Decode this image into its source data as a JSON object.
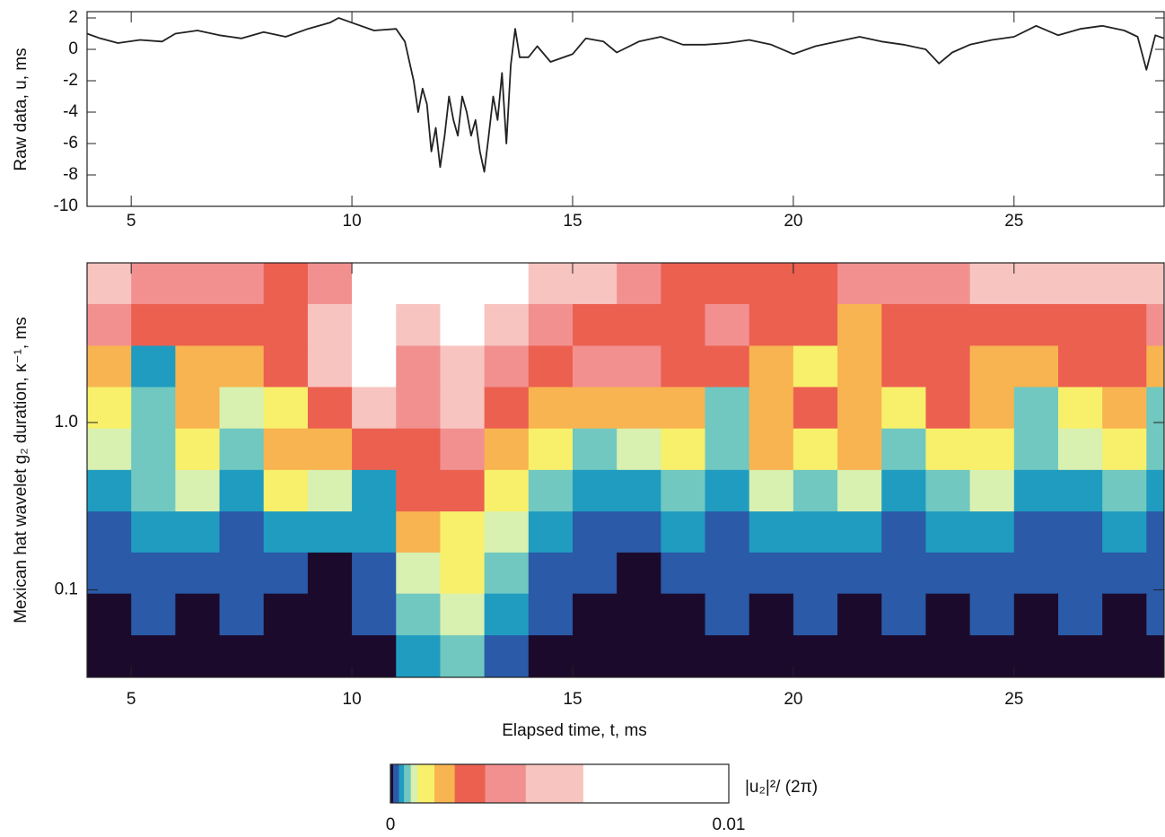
{
  "chart_data": [
    {
      "type": "line",
      "ylabel": "Raw data, u, ms",
      "x": [
        4.0,
        4.3,
        4.7,
        5.2,
        5.7,
        6.0,
        6.5,
        7.0,
        7.5,
        8.0,
        8.5,
        9.0,
        9.5,
        9.7,
        10.0,
        10.5,
        11.0,
        11.2,
        11.4,
        11.5,
        11.6,
        11.7,
        11.8,
        11.9,
        12.0,
        12.1,
        12.2,
        12.3,
        12.4,
        12.5,
        12.6,
        12.7,
        12.8,
        12.9,
        13.0,
        13.1,
        13.2,
        13.3,
        13.4,
        13.5,
        13.6,
        13.7,
        13.8,
        14.0,
        14.2,
        14.5,
        15.0,
        15.3,
        15.7,
        16.0,
        16.5,
        17.0,
        17.5,
        18.0,
        18.5,
        19.0,
        19.5,
        20.0,
        20.5,
        21.0,
        21.5,
        22.0,
        22.5,
        23.0,
        23.3,
        23.6,
        24.0,
        24.5,
        25.0,
        25.5,
        26.0,
        26.5,
        27.0,
        27.5,
        27.8,
        28.0,
        28.2,
        28.4
      ],
      "values": [
        1.0,
        0.7,
        0.4,
        0.6,
        0.5,
        1.0,
        1.2,
        0.9,
        0.7,
        1.1,
        0.8,
        1.3,
        1.7,
        2.0,
        1.7,
        1.2,
        1.3,
        0.5,
        -2.0,
        -4.0,
        -2.5,
        -3.5,
        -6.5,
        -5.0,
        -7.5,
        -5.5,
        -3.0,
        -4.5,
        -5.5,
        -3.0,
        -4.0,
        -5.5,
        -4.5,
        -6.5,
        -7.8,
        -5.5,
        -3.0,
        -4.5,
        -1.5,
        -6.0,
        -1.0,
        1.3,
        -0.5,
        -0.5,
        0.2,
        -0.8,
        -0.3,
        0.7,
        0.5,
        -0.2,
        0.5,
        0.8,
        0.3,
        0.3,
        0.4,
        0.6,
        0.3,
        -0.3,
        0.2,
        0.5,
        0.8,
        0.5,
        0.3,
        0.0,
        -0.9,
        -0.2,
        0.3,
        0.6,
        0.8,
        1.5,
        0.9,
        1.3,
        1.5,
        1.2,
        0.8,
        -1.3,
        0.9,
        0.7
      ],
      "color": "#222222",
      "xlim": [
        4.0,
        28.4
      ],
      "xticks": [
        5,
        10,
        15,
        20,
        25
      ],
      "ylim": [
        -10,
        2.4
      ],
      "yticks": [
        -10,
        -8,
        -6,
        -4,
        -2,
        0,
        2
      ]
    },
    {
      "type": "heatmap",
      "xlabel": "Elapsed time, t, ms",
      "ylabel": "Mexican hat wavelet g₂ duration, κ⁻¹, ms",
      "log_y": true,
      "xlim": [
        4.0,
        28.4
      ],
      "xticks": [
        5,
        10,
        15,
        20,
        25
      ],
      "ylim": [
        0.03,
        9
      ],
      "yticks": [
        0.1,
        {
          "value": 1,
          "label": "1.0"
        }
      ],
      "x": [
        4.5,
        5.5,
        6.5,
        7.5,
        8.5,
        9.5,
        10.5,
        11.5,
        12.5,
        13.5,
        14.5,
        15.5,
        16.5,
        17.5,
        18.5,
        19.5,
        20.5,
        21.5,
        22.5,
        23.5,
        24.5,
        25.5,
        26.5,
        27.5,
        28.5
      ],
      "y": [
        6.8,
        3.8,
        2.16,
        1.22,
        0.69,
        0.39,
        0.22,
        0.126,
        0.071,
        0.04
      ],
      "z": [
        [
          0.0048,
          0.0034,
          0.0034,
          0.0034,
          0.0023,
          0.0034,
          0.008,
          0.008,
          0.008,
          0.008,
          0.0048,
          0.0048,
          0.0034,
          0.0023,
          0.0023,
          0.0023,
          0.0023,
          0.0034,
          0.0034,
          0.0034,
          0.0048,
          0.0048,
          0.0048,
          0.0048,
          0.0048
        ],
        [
          0.0034,
          0.0023,
          0.0023,
          0.0023,
          0.0023,
          0.0048,
          0.008,
          0.0048,
          0.008,
          0.0048,
          0.0034,
          0.0023,
          0.0023,
          0.0023,
          0.0034,
          0.0023,
          0.0023,
          0.0016,
          0.0023,
          0.0023,
          0.0023,
          0.0023,
          0.0023,
          0.0023,
          0.0034
        ],
        [
          0.0016,
          0.0003,
          0.0016,
          0.0016,
          0.0023,
          0.0048,
          0.008,
          0.0034,
          0.0048,
          0.0034,
          0.0023,
          0.0034,
          0.0034,
          0.0023,
          0.0023,
          0.0016,
          0.001,
          0.0016,
          0.0023,
          0.0023,
          0.0016,
          0.0016,
          0.0023,
          0.0023,
          0.0016
        ],
        [
          0.001,
          0.0005,
          0.0016,
          0.0007,
          0.001,
          0.0023,
          0.0048,
          0.0034,
          0.0048,
          0.0023,
          0.0016,
          0.0016,
          0.0016,
          0.0016,
          0.0005,
          0.0016,
          0.0023,
          0.0016,
          0.001,
          0.0023,
          0.0016,
          0.0005,
          0.001,
          0.0016,
          0.0005
        ],
        [
          0.0007,
          0.0005,
          0.001,
          0.0005,
          0.0016,
          0.0016,
          0.0023,
          0.0023,
          0.0034,
          0.0016,
          0.001,
          0.0005,
          0.0007,
          0.001,
          0.0005,
          0.0016,
          0.001,
          0.0016,
          0.0005,
          0.001,
          0.001,
          0.0005,
          0.0007,
          0.001,
          0.0005
        ],
        [
          0.0003,
          0.0005,
          0.0007,
          0.0003,
          0.001,
          0.0007,
          0.0003,
          0.0023,
          0.0023,
          0.001,
          0.0005,
          0.0003,
          0.0003,
          0.0005,
          0.0003,
          0.0007,
          0.0005,
          0.0007,
          0.0003,
          0.0005,
          0.0007,
          0.0003,
          0.0003,
          0.0005,
          0.0003
        ],
        [
          0.00015,
          0.0003,
          0.0003,
          0.00015,
          0.0003,
          0.0003,
          0.0003,
          0.0016,
          0.001,
          0.0007,
          0.0003,
          0.00015,
          0.00015,
          0.0003,
          0.00015,
          0.0003,
          0.0003,
          0.0003,
          0.00015,
          0.0003,
          0.0003,
          0.00015,
          0.00015,
          0.0003,
          0.00015
        ],
        [
          0.00015,
          0.00015,
          0.00015,
          0.00015,
          0.00015,
          5e-05,
          0.00015,
          0.0007,
          0.001,
          0.0005,
          0.00015,
          0.00015,
          5e-05,
          0.00015,
          0.00015,
          0.00015,
          0.00015,
          0.00015,
          0.00015,
          0.00015,
          0.00015,
          0.00015,
          0.00015,
          0.00015,
          0.00015
        ],
        [
          5e-05,
          0.00015,
          5e-05,
          0.00015,
          5e-05,
          5e-05,
          0.00015,
          0.0005,
          0.0007,
          0.0003,
          0.00015,
          5e-05,
          5e-05,
          5e-05,
          0.00015,
          5e-05,
          0.00015,
          5e-05,
          0.00015,
          5e-05,
          0.00015,
          5e-05,
          0.00015,
          5e-05,
          0.00015
        ],
        [
          5e-05,
          5e-05,
          5e-05,
          5e-05,
          5e-05,
          5e-05,
          5e-05,
          0.0003,
          0.0005,
          0.00015,
          5e-05,
          5e-05,
          5e-05,
          5e-05,
          5e-05,
          5e-05,
          5e-05,
          5e-05,
          5e-05,
          5e-05,
          5e-05,
          5e-05,
          5e-05,
          5e-05,
          5e-05
        ]
      ],
      "colorbar": {
        "label": "|u₂|²/ (2π)",
        "levels": [
          0,
          8e-05,
          0.00025,
          0.0004,
          0.0006,
          0.0008,
          0.0013,
          0.0019,
          0.0028,
          0.004,
          0.0057,
          0.01
        ],
        "colors": [
          "#1c0a2c",
          "#2a5aa8",
          "#1f9cc0",
          "#70c8c0",
          "#d8f0b0",
          "#f8f06a",
          "#f8b450",
          "#ec6050",
          "#f29090",
          "#f8c4c0",
          "#ffffff"
        ],
        "ticks": [
          0,
          0.01
        ]
      }
    }
  ]
}
